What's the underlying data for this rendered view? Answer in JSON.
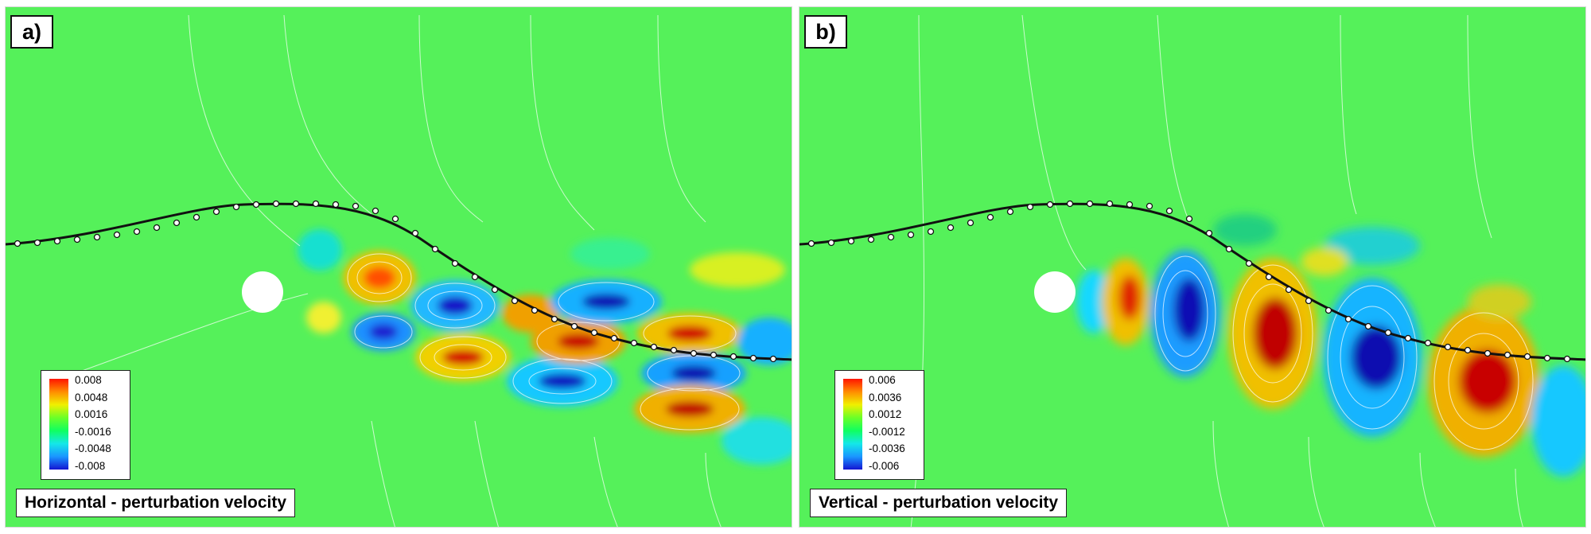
{
  "panels": [
    {
      "tag": "a)",
      "caption": "Horizontal - perturbation velocity",
      "legend": [
        "0.008",
        "0.0048",
        "0.0016",
        "-0.0016",
        "-0.0048",
        "-0.008"
      ]
    },
    {
      "tag": "b)",
      "caption": "Vertical - perturbation velocity",
      "legend": [
        "0.006",
        "0.0036",
        "0.0012",
        "-0.0012",
        "-0.0036",
        "-0.006"
      ]
    }
  ],
  "colors": {
    "background": "#52f25e",
    "positive_peak": "#c80000",
    "negative_peak": "#0a0ab4",
    "contour_lines": "#ffffff",
    "interface_line": "#111111"
  }
}
